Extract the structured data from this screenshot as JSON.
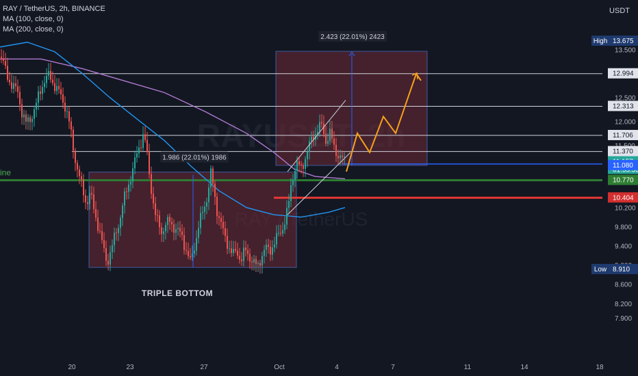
{
  "legend": {
    "symbol": "RAY / TetherUS, 2h, BINANCE",
    "ma1": "MA (100, close, 0)",
    "ma2": "MA (200, close, 0)"
  },
  "currency": "USDT",
  "watermark": "RAYUSDT, 2h",
  "watermark_sub": "RAY / TetherUS",
  "left_cut_label": "ine",
  "colors": {
    "background": "#131722",
    "up": "#26a69a",
    "down": "#ef5350",
    "ma100": "#2196f3",
    "ma200": "#b07ad0",
    "support": "#2e7d32",
    "resistance": "#e53935",
    "projection": "#f7a21b",
    "box": "#6d2a36"
  },
  "annotations": {
    "pattern": "TRIPLE  BOTTOM",
    "measure1": "1.986 (22.01%) 1986",
    "measure2": "2.423 (22.01%) 2423"
  },
  "chart_data": {
    "type": "candlestick",
    "ylim": [
      7.65,
      13.9
    ],
    "xlim": [
      0,
      932
    ],
    "price_ticks": [
      "13.500",
      "12.500",
      "12.000",
      "11.500",
      "10.200",
      "9.800",
      "9.400",
      "9.000",
      "8.600",
      "8.200",
      "7.900"
    ],
    "price_tick_values": [
      13.5,
      12.5,
      12.0,
      11.5,
      10.2,
      9.8,
      9.4,
      9.0,
      8.6,
      8.2,
      7.9
    ],
    "date_ticks": [
      {
        "label": "20",
        "x": 105
      },
      {
        "label": "23",
        "x": 190
      },
      {
        "label": "27",
        "x": 298
      },
      {
        "label": "Oct",
        "x": 408
      },
      {
        "label": "4",
        "x": 492
      },
      {
        "label": "7",
        "x": 574
      },
      {
        "label": "11",
        "x": 683
      },
      {
        "label": "14",
        "x": 766
      },
      {
        "label": "18",
        "x": 876
      }
    ],
    "price_labels": [
      {
        "text": "High",
        "value": "13.675",
        "y": 13.675,
        "kind": "high"
      },
      {
        "text": "",
        "value": "12.994",
        "y": 12.994,
        "kind": "level"
      },
      {
        "text": "",
        "value": "12.313",
        "y": 12.313,
        "kind": "level"
      },
      {
        "text": "",
        "value": "11.706",
        "y": 11.706,
        "kind": "level"
      },
      {
        "text": "",
        "value": "11.370",
        "y": 11.37,
        "kind": "level"
      },
      {
        "text": "",
        "value": "11.157",
        "y": 11.157,
        "kind": "current",
        "extra": "01:55:53"
      },
      {
        "text": "",
        "value": "11.080",
        "y": 11.08,
        "kind": "blue"
      },
      {
        "text": "",
        "value": "10.770",
        "y": 10.77,
        "kind": "green"
      },
      {
        "text": "",
        "value": "10.404",
        "y": 10.404,
        "kind": "red"
      },
      {
        "text": "Low",
        "value": "8.910",
        "y": 8.91,
        "kind": "low"
      }
    ],
    "horizontal_levels": [
      12.994,
      12.313,
      11.706,
      11.37
    ],
    "support_level": 10.77,
    "resistance_level": 10.404,
    "current_price": 11.157,
    "blue_level": 11.08,
    "close_path": [
      [
        2,
        13.35
      ],
      [
        10,
        12.95
      ],
      [
        18,
        12.75
      ],
      [
        26,
        12.6
      ],
      [
        32,
        12.2
      ],
      [
        38,
        11.95
      ],
      [
        44,
        12.05
      ],
      [
        52,
        12.3
      ],
      [
        58,
        12.6
      ],
      [
        64,
        12.85
      ],
      [
        72,
        12.95
      ],
      [
        80,
        12.75
      ],
      [
        88,
        12.55
      ],
      [
        96,
        12.3
      ],
      [
        102,
        11.9
      ],
      [
        108,
        11.35
      ],
      [
        114,
        10.95
      ],
      [
        120,
        10.6
      ],
      [
        126,
        10.3
      ],
      [
        132,
        10.5
      ],
      [
        138,
        10.1
      ],
      [
        144,
        9.8
      ],
      [
        150,
        9.4
      ],
      [
        156,
        9.05
      ],
      [
        162,
        9.3
      ],
      [
        168,
        9.6
      ],
      [
        174,
        9.9
      ],
      [
        180,
        10.3
      ],
      [
        186,
        10.6
      ],
      [
        192,
        10.9
      ],
      [
        198,
        11.2
      ],
      [
        204,
        11.5
      ],
      [
        210,
        11.75
      ],
      [
        214,
        11.4
      ],
      [
        218,
        10.9
      ],
      [
        222,
        10.5
      ],
      [
        226,
        10.1
      ],
      [
        230,
        9.9
      ],
      [
        236,
        9.7
      ],
      [
        242,
        9.85
      ],
      [
        248,
        9.9
      ],
      [
        254,
        9.8
      ],
      [
        260,
        9.7
      ],
      [
        266,
        9.6
      ],
      [
        272,
        9.3
      ],
      [
        278,
        9.05
      ],
      [
        284,
        9.4
      ],
      [
        290,
        9.8
      ],
      [
        296,
        10.1
      ],
      [
        302,
        10.4
      ],
      [
        308,
        10.9
      ],
      [
        312,
        10.6
      ],
      [
        316,
        10.2
      ],
      [
        322,
        9.9
      ],
      [
        328,
        9.6
      ],
      [
        334,
        9.4
      ],
      [
        340,
        9.2
      ],
      [
        346,
        9.3
      ],
      [
        352,
        9.1
      ],
      [
        358,
        9.3
      ],
      [
        364,
        9.2
      ],
      [
        370,
        9.05
      ],
      [
        376,
        8.95
      ],
      [
        382,
        9.2
      ],
      [
        388,
        9.35
      ],
      [
        394,
        9.3
      ],
      [
        400,
        9.45
      ],
      [
        406,
        9.6
      ],
      [
        412,
        9.75
      ],
      [
        418,
        10.0
      ],
      [
        422,
        10.3
      ],
      [
        426,
        10.75
      ],
      [
        430,
        11.0
      ],
      [
        434,
        11.1
      ],
      [
        440,
        11.0
      ],
      [
        446,
        11.25
      ],
      [
        452,
        11.5
      ],
      [
        458,
        11.7
      ],
      [
        464,
        11.85
      ],
      [
        470,
        11.9
      ],
      [
        476,
        11.6
      ],
      [
        482,
        11.75
      ],
      [
        488,
        11.45
      ],
      [
        494,
        11.3
      ],
      [
        500,
        11.2
      ],
      [
        504,
        11.157
      ]
    ],
    "ma100": [
      [
        0,
        13.55
      ],
      [
        40,
        13.65
      ],
      [
        80,
        13.45
      ],
      [
        120,
        13.0
      ],
      [
        160,
        12.5
      ],
      [
        200,
        12.05
      ],
      [
        240,
        11.6
      ],
      [
        280,
        11.05
      ],
      [
        320,
        10.55
      ],
      [
        360,
        10.2
      ],
      [
        400,
        10.05
      ],
      [
        440,
        10.0
      ],
      [
        480,
        10.1
      ],
      [
        504,
        10.2
      ]
    ],
    "ma200": [
      [
        0,
        13.3
      ],
      [
        60,
        13.3
      ],
      [
        120,
        13.1
      ],
      [
        180,
        12.85
      ],
      [
        240,
        12.6
      ],
      [
        300,
        12.2
      ],
      [
        360,
        11.75
      ],
      [
        400,
        11.35
      ],
      [
        430,
        11.0
      ],
      [
        460,
        10.85
      ],
      [
        504,
        10.8
      ]
    ],
    "projection": [
      [
        506,
        10.95
      ],
      [
        522,
        11.75
      ],
      [
        540,
        11.35
      ],
      [
        560,
        12.1
      ],
      [
        578,
        11.75
      ],
      [
        608,
        12.99
      ],
      [
        615,
        12.85
      ]
    ],
    "channel_upper": [
      [
        420,
        10.95
      ],
      [
        505,
        12.44
      ]
    ],
    "channel_lower": [
      [
        420,
        10.05
      ],
      [
        512,
        11.35
      ]
    ],
    "box1": {
      "x0": 130,
      "x1": 433,
      "y0": 8.95,
      "y1": 10.94
    },
    "box2": {
      "x0": 403,
      "x1": 624,
      "y0": 11.08,
      "y1": 13.46
    },
    "measure1_line": {
      "x": 282,
      "y0": 8.95,
      "y1": 10.94
    },
    "measure2_line": {
      "x": 514,
      "y0": 11.08,
      "y1": 13.46
    },
    "triple_bottom_box": {
      "x0": 135,
      "x1": 415,
      "y0": 8.68,
      "y1": 8.95
    }
  }
}
